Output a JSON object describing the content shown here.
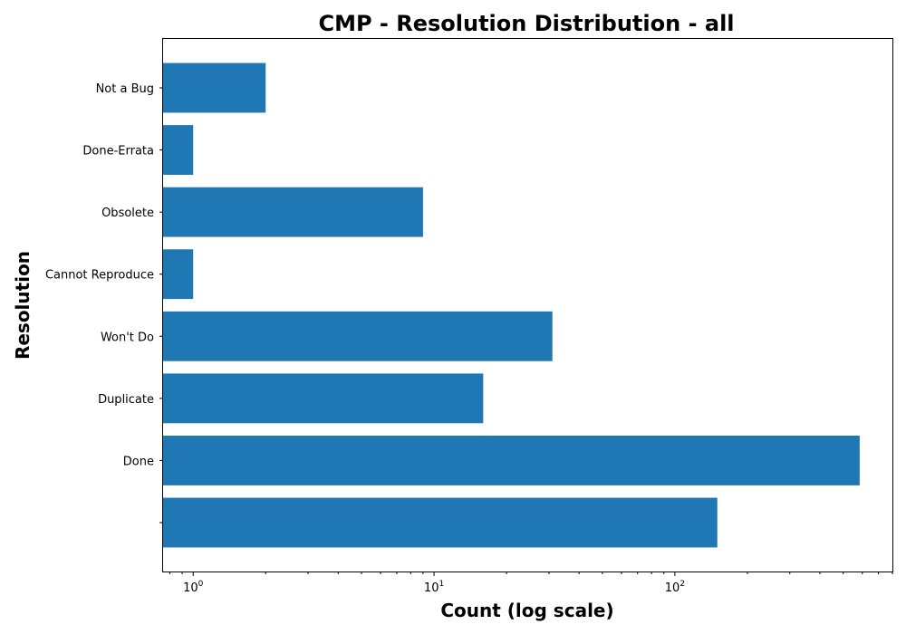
{
  "chart_data": {
    "type": "bar",
    "orientation": "horizontal",
    "title": "CMP - Resolution Distribution - all",
    "xlabel": "Count (log scale)",
    "ylabel": "Resolution",
    "x_scale": "log",
    "xlim": [
      0.75,
      800
    ],
    "x_ticks": [
      {
        "value": 1,
        "base": "10",
        "exp": "0"
      },
      {
        "value": 10,
        "base": "10",
        "exp": "1"
      },
      {
        "value": 100,
        "base": "10",
        "exp": "2"
      }
    ],
    "categories": [
      "",
      "Done",
      "Duplicate",
      "Won't Do",
      "Cannot Reproduce",
      "Obsolete",
      "Done-Errata",
      "Not a Bug"
    ],
    "values": [
      150,
      585,
      16,
      31,
      1,
      9,
      1,
      2
    ],
    "bar_color": "#1f77b4",
    "grid": false,
    "legend": "none"
  }
}
